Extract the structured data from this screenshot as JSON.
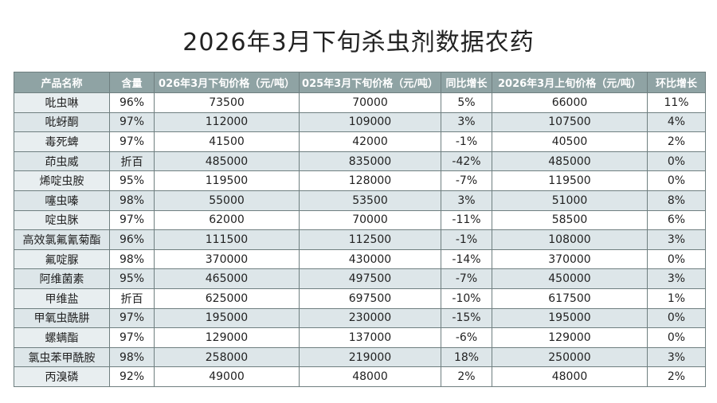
{
  "header": {
    "title": "2026年3月下旬杀虫剂数据农药"
  },
  "table": {
    "columns": [
      "产品名称",
      "含量",
      "026年3月下旬价格（元/吨）",
      "025年3月下旬价格（元/吨）",
      "同比增长",
      "2026年3月上旬价格（元/吨）",
      "环比增长"
    ],
    "rows": [
      [
        "吡虫啉",
        "96%",
        "73500",
        "70000",
        "5%",
        "66000",
        "11%"
      ],
      [
        "吡蚜酮",
        "97%",
        "112000",
        "109000",
        "3%",
        "107500",
        "4%"
      ],
      [
        "毒死蜱",
        "97%",
        "41500",
        "42000",
        "-1%",
        "40500",
        "2%"
      ],
      [
        "茚虫威",
        "折百",
        "485000",
        "835000",
        "-42%",
        "485000",
        "0%"
      ],
      [
        "烯啶虫胺",
        "95%",
        "119500",
        "128000",
        "-7%",
        "119500",
        "0%"
      ],
      [
        "噻虫嗪",
        "98%",
        "55000",
        "53500",
        "3%",
        "51000",
        "8%"
      ],
      [
        "啶虫脒",
        "97%",
        "62000",
        "70000",
        "-11%",
        "58500",
        "6%"
      ],
      [
        "高效氯氟氰菊酯",
        "96%",
        "111500",
        "112500",
        "-1%",
        "108000",
        "3%"
      ],
      [
        "氟啶脲",
        "98%",
        "370000",
        "430000",
        "-14%",
        "370000",
        "0%"
      ],
      [
        "阿维菌素",
        "95%",
        "465000",
        "497500",
        "-7%",
        "450000",
        "3%"
      ],
      [
        "甲维盐",
        "折百",
        "625000",
        "697500",
        "-10%",
        "617500",
        "1%"
      ],
      [
        "甲氧虫酰肼",
        "97%",
        "195000",
        "230000",
        "-15%",
        "195000",
        "0%"
      ],
      [
        "螺螨酯",
        "97%",
        "129000",
        "137000",
        "-6%",
        "129000",
        "0%"
      ],
      [
        "氯虫苯甲酰胺",
        "98%",
        "258000",
        "219000",
        "18%",
        "250000",
        "3%"
      ],
      [
        "丙溴磷",
        "92%",
        "49000",
        "48000",
        "2%",
        "48000",
        "2%"
      ]
    ]
  }
}
